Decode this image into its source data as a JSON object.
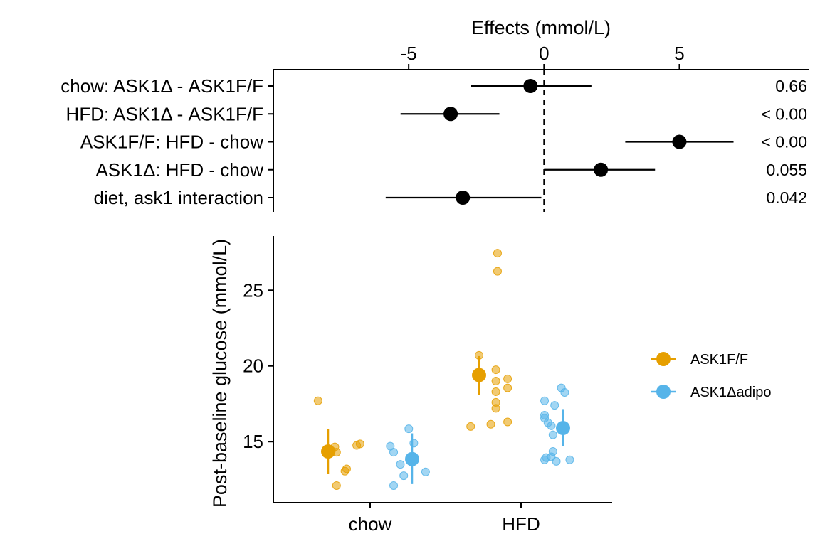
{
  "chart_data": [
    {
      "type": "forest",
      "xlabel": "Effects (mmol/L)",
      "xlim": [
        -10,
        9.8
      ],
      "xticks": [
        -5,
        0,
        5
      ],
      "reference_line": 0,
      "contrasts": [
        {
          "label": "chow: ASK1Δ - ASK1F/F",
          "estimate": -0.5,
          "lower": -2.7,
          "upper": 1.75,
          "p_label": "0.66"
        },
        {
          "label": "HFD: ASK1Δ - ASK1F/F",
          "estimate": -3.45,
          "lower": -5.3,
          "upper": -1.65,
          "p_label": "< 0.00"
        },
        {
          "label": "ASK1F/F: HFD - chow",
          "estimate": 5.0,
          "lower": 3.0,
          "upper": 7.0,
          "p_label": "< 0.00"
        },
        {
          "label": "ASK1Δ: HFD - chow",
          "estimate": 2.1,
          "lower": 0.0,
          "upper": 4.1,
          "p_label": "0.055"
        },
        {
          "label": "diet, ask1 interaction",
          "estimate": -3.0,
          "lower": -5.85,
          "upper": -0.1,
          "p_label": "0.042"
        }
      ]
    },
    {
      "type": "scatter",
      "xlabel": "",
      "ylabel": "Post-baseline glucose (mmol/L)",
      "categories": [
        "chow",
        "HFD"
      ],
      "ylim": [
        11.3,
        28.3
      ],
      "yticks": [
        15,
        20,
        25
      ],
      "legend_position": "right",
      "series": [
        {
          "name": "ASK1F/F",
          "color": "#E69F00",
          "x_offset": -0.25,
          "groups": [
            {
              "category": "chow",
              "mean": 14.35,
              "lower": 12.85,
              "upper": 15.85,
              "points": [
                {
                  "jitter": -0.06,
                  "y": 17.7
                },
                {
                  "jitter": 0.04,
                  "y": 14.65
                },
                {
                  "jitter": 0.02,
                  "y": 14.4
                },
                {
                  "jitter": 0.05,
                  "y": 14.3
                },
                {
                  "jitter": 0.17,
                  "y": 14.75
                },
                {
                  "jitter": 0.19,
                  "y": 14.85
                },
                {
                  "jitter": 0.11,
                  "y": 13.2
                },
                {
                  "jitter": 0.1,
                  "y": 13.05
                },
                {
                  "jitter": 0.05,
                  "y": 12.1
                }
              ]
            },
            {
              "category": "HFD",
              "mean": 19.4,
              "lower": 18.1,
              "upper": 20.65,
              "points": [
                {
                  "jitter": 0.11,
                  "y": 27.45
                },
                {
                  "jitter": 0.11,
                  "y": 26.25
                },
                {
                  "jitter": 0.0,
                  "y": 20.7
                },
                {
                  "jitter": 0.1,
                  "y": 19.75
                },
                {
                  "jitter": 0.1,
                  "y": 19.0
                },
                {
                  "jitter": 0.1,
                  "y": 18.3
                },
                {
                  "jitter": 0.17,
                  "y": 19.15
                },
                {
                  "jitter": 0.17,
                  "y": 18.55
                },
                {
                  "jitter": 0.1,
                  "y": 17.6
                },
                {
                  "jitter": 0.1,
                  "y": 17.2
                },
                {
                  "jitter": 0.17,
                  "y": 16.3
                },
                {
                  "jitter": 0.07,
                  "y": 16.15
                },
                {
                  "jitter": -0.05,
                  "y": 16.0
                }
              ]
            }
          ]
        },
        {
          "name": "ASK1Δadipo",
          "color": "#56B4E9",
          "x_offset": 0.25,
          "groups": [
            {
              "category": "chow",
              "mean": 13.85,
              "lower": 12.2,
              "upper": 15.55,
              "points": [
                {
                  "jitter": -0.13,
                  "y": 14.7
                },
                {
                  "jitter": -0.11,
                  "y": 14.3
                },
                {
                  "jitter": -0.07,
                  "y": 13.5
                },
                {
                  "jitter": -0.05,
                  "y": 12.75
                },
                {
                  "jitter": -0.11,
                  "y": 12.1
                },
                {
                  "jitter": -0.02,
                  "y": 15.85
                },
                {
                  "jitter": 0.01,
                  "y": 14.9
                },
                {
                  "jitter": 0.08,
                  "y": 13.0
                }
              ]
            },
            {
              "category": "HFD",
              "mean": 15.9,
              "lower": 14.7,
              "upper": 17.15,
              "points": [
                {
                  "jitter": -0.11,
                  "y": 17.7
                },
                {
                  "jitter": -0.05,
                  "y": 17.4
                },
                {
                  "jitter": -0.01,
                  "y": 18.55
                },
                {
                  "jitter": 0.01,
                  "y": 18.25
                },
                {
                  "jitter": -0.11,
                  "y": 16.75
                },
                {
                  "jitter": -0.11,
                  "y": 16.55
                },
                {
                  "jitter": -0.09,
                  "y": 16.25
                },
                {
                  "jitter": -0.07,
                  "y": 16.05
                },
                {
                  "jitter": -0.06,
                  "y": 15.45
                },
                {
                  "jitter": -0.06,
                  "y": 14.35
                },
                {
                  "jitter": -0.07,
                  "y": 14.0
                },
                {
                  "jitter": -0.1,
                  "y": 13.95
                },
                {
                  "jitter": -0.11,
                  "y": 13.8
                },
                {
                  "jitter": -0.04,
                  "y": 13.7
                },
                {
                  "jitter": 0.04,
                  "y": 13.8
                }
              ]
            }
          ]
        }
      ]
    }
  ]
}
